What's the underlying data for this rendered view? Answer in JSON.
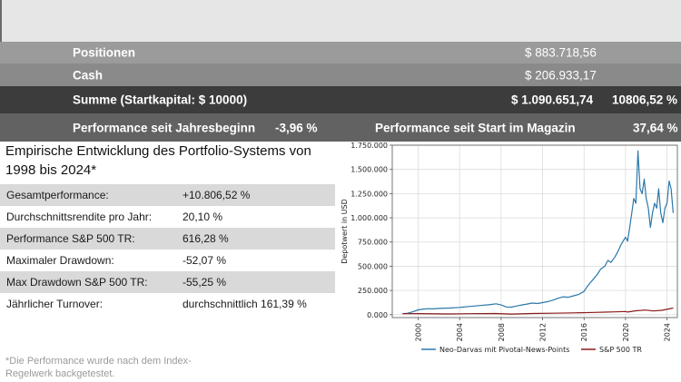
{
  "summary": {
    "positions": {
      "label": "Positionen",
      "value": "$ 883.718,56"
    },
    "cash": {
      "label": "Cash",
      "value": "$ 206.933,17"
    },
    "total": {
      "label": "Summe (Startkapital: $ 10000)",
      "value": "$ 1.090.651,74",
      "pct": "10806,52 %"
    },
    "performance_ytd": {
      "label": "Performance seit Jahresbeginn",
      "value": "-3,96 %"
    },
    "performance_start": {
      "label": "Performance seit Start im Magazin",
      "value": "37,64 %"
    }
  },
  "section_title": "Empirische Entwicklung des Portfolio-Systems von 1998 bis 2024*",
  "stats": [
    {
      "label": "Gesamtperformance:",
      "value": "+10.806,52 %"
    },
    {
      "label": "Durchschnittsrendite pro Jahr:",
      "value": "20,10 %"
    },
    {
      "label": "Performance S&P 500 TR:",
      "value": "616,28 %"
    },
    {
      "label": "Maximaler Drawdown:",
      "value": "-52,07 %"
    },
    {
      "label": "Max Drawdown S&P 500 TR:",
      "value": "-55,25 %"
    },
    {
      "label": "Jährlicher Turnover:",
      "value": "durchschnittlich 161,39 %"
    }
  ],
  "footnote": "*Die Performance wurde nach dem Index-Regelwerk backgetestet.",
  "chart_data": {
    "type": "line",
    "ylabel": "Depotwert in USD",
    "xlabel": "",
    "xlim": [
      1997.5,
      2025.0
    ],
    "ylim": [
      -30000,
      1750000
    ],
    "y_ticks": [
      0,
      250000,
      500000,
      750000,
      1000000,
      1250000,
      1500000,
      1750000
    ],
    "y_tick_labels": [
      "0.000",
      "250.000",
      "500.000",
      "750.000",
      "1.000.000",
      "1.250.000",
      "1.500.000",
      "1.750.000"
    ],
    "x_ticks": [
      2000,
      2004,
      2008,
      2012,
      2016,
      2020,
      2024
    ],
    "x_tick_labels": [
      "2000",
      "2004",
      "2008",
      "2012",
      "2016",
      "2020",
      "2024"
    ],
    "grid": true,
    "legend_position": "bottom",
    "series": [
      {
        "name": "Neo-Darvas mit Pivotal-News-Points",
        "color": "#2a78aa",
        "x": [
          1998.5,
          1999.0,
          1999.5,
          2000.0,
          2000.5,
          2001.0,
          2001.5,
          2002.0,
          2003.0,
          2004.0,
          2005.0,
          2006.0,
          2007.0,
          2007.5,
          2008.0,
          2008.5,
          2009.0,
          2009.5,
          2010.0,
          2010.5,
          2011.0,
          2011.5,
          2012.0,
          2012.5,
          2013.0,
          2013.5,
          2014.0,
          2014.5,
          2015.0,
          2015.5,
          2016.0,
          2016.3,
          2016.6,
          2017.0,
          2017.3,
          2017.6,
          2018.0,
          2018.3,
          2018.6,
          2019.0,
          2019.3,
          2019.6,
          2020.0,
          2020.2,
          2020.4,
          2020.6,
          2020.8,
          2021.0,
          2021.2,
          2021.4,
          2021.6,
          2021.8,
          2022.0,
          2022.2,
          2022.4,
          2022.6,
          2022.8,
          2023.0,
          2023.2,
          2023.4,
          2023.6,
          2023.8,
          2024.0,
          2024.2,
          2024.4,
          2024.6
        ],
        "values": [
          10000,
          15000,
          30000,
          50000,
          58000,
          62000,
          60000,
          65000,
          68000,
          75000,
          85000,
          95000,
          105000,
          112000,
          100000,
          80000,
          78000,
          90000,
          100000,
          110000,
          120000,
          115000,
          125000,
          135000,
          150000,
          170000,
          185000,
          180000,
          195000,
          210000,
          240000,
          290000,
          330000,
          380000,
          420000,
          470000,
          500000,
          560000,
          540000,
          600000,
          660000,
          730000,
          800000,
          760000,
          900000,
          1050000,
          1200000,
          1150000,
          1690000,
          1300000,
          1250000,
          1400000,
          1200000,
          1100000,
          900000,
          1050000,
          1150000,
          1100000,
          1300000,
          1050000,
          950000,
          1100000,
          1150000,
          1380000,
          1300000,
          1050000
        ]
      },
      {
        "name": "S&P 500 TR",
        "color": "#8b1a1a",
        "x": [
          1998.5,
          2000.0,
          2002.0,
          2003.0,
          2005.0,
          2007.5,
          2009.0,
          2011.0,
          2013.0,
          2015.0,
          2017.0,
          2018.0,
          2019.0,
          2020.0,
          2020.2,
          2021.0,
          2021.9,
          2022.7,
          2023.5,
          2024.0,
          2024.6
        ],
        "values": [
          10000,
          11500,
          8000,
          7800,
          10000,
          12500,
          7000,
          12000,
          15000,
          19000,
          23000,
          26000,
          29000,
          33000,
          27000,
          40000,
          48000,
          38000,
          45000,
          55000,
          68000
        ]
      }
    ]
  }
}
